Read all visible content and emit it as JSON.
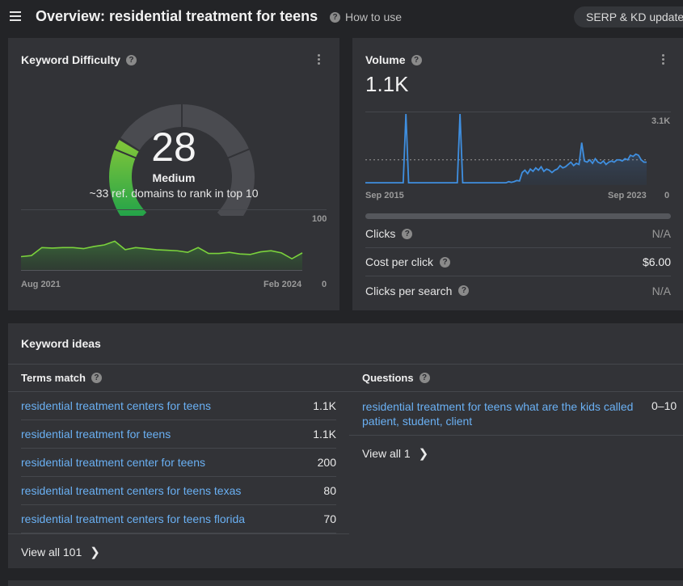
{
  "header": {
    "title": "Overview: residential treatment for teens",
    "how_to": "How to use",
    "serp_button": "SERP & KD updates"
  },
  "kd": {
    "title": "Keyword Difficulty",
    "value": "28",
    "level": "Medium",
    "description": "~33 ref. domains to rank in top 10",
    "gauge_fraction": 0.28,
    "colors": {
      "track": "#4a4b50",
      "fill_light": "#7cc43a",
      "fill_dark": "#1ea14a",
      "line": "#7bd23c"
    },
    "chart": {
      "x_start": "Aug 2021",
      "x_end": "Feb 2024",
      "y_max": "100",
      "y_min": "0"
    }
  },
  "volume": {
    "title": "Volume",
    "value": "1.1K",
    "colors": {
      "line": "#3f8fe0",
      "avg": "#9a9a9a"
    },
    "chart": {
      "x_start": "Sep 2015",
      "x_end": "Sep 2023",
      "y_max": "3.1K",
      "y_min": "0"
    },
    "metrics": [
      {
        "label": "Clicks",
        "value": "N/A"
      },
      {
        "label": "Cost per click",
        "value": "$6.00"
      },
      {
        "label": "Clicks per search",
        "value": "N/A"
      }
    ]
  },
  "chart_data": [
    {
      "type": "area",
      "title": "",
      "x_range": [
        "Aug 2021",
        "Feb 2024"
      ],
      "ylim": [
        0,
        100
      ],
      "values": [
        25,
        27,
        42,
        41,
        42,
        42,
        40,
        44,
        47,
        54,
        38,
        42,
        40,
        38,
        37,
        36,
        33,
        42,
        31,
        31,
        33,
        30,
        29,
        34,
        36,
        32,
        21,
        32
      ],
      "series": [
        {
          "name": "",
          "values": []
        }
      ]
    },
    {
      "type": "line",
      "title": "",
      "x_range": [
        "Sep 2015",
        "Sep 2023"
      ],
      "ylim": [
        0,
        3100
      ],
      "average": 1100,
      "values": [
        100,
        100,
        100,
        100,
        100,
        100,
        100,
        100,
        100,
        100,
        100,
        100,
        100,
        100,
        100,
        3100,
        100,
        100,
        100,
        100,
        100,
        100,
        100,
        100,
        100,
        100,
        100,
        100,
        100,
        100,
        100,
        100,
        100,
        100,
        100,
        3100,
        100,
        100,
        100,
        100,
        100,
        100,
        100,
        100,
        100,
        100,
        100,
        100,
        100,
        100,
        100,
        100,
        100,
        150,
        120,
        150,
        200,
        180,
        550,
        650,
        500,
        700,
        600,
        750,
        650,
        800,
        600,
        700,
        650,
        550,
        650,
        700,
        850,
        750,
        800,
        900,
        1000,
        850,
        950,
        900,
        1850,
        1050,
        1000,
        1100,
        950,
        1150,
        1000,
        950,
        1050,
        900,
        1000,
        1050,
        1000,
        1100,
        1100,
        1050,
        1150,
        1100,
        1300,
        1250,
        1350,
        1300,
        1100,
        1000,
        1000
      ]
    }
  ],
  "ideas": {
    "title": "Keyword ideas",
    "terms": {
      "title": "Terms match",
      "rows": [
        {
          "keyword": "residential treatment centers for teens",
          "volume": "1.1K"
        },
        {
          "keyword": "residential treatment for teens",
          "volume": "1.1K"
        },
        {
          "keyword": "residential treatment center for teens",
          "volume": "200"
        },
        {
          "keyword": "residential treatment centers for teens texas",
          "volume": "80"
        },
        {
          "keyword": "residential treatment centers for teens florida",
          "volume": "70"
        }
      ],
      "view_all": "View all 101"
    },
    "questions": {
      "title": "Questions",
      "rows": [
        {
          "keyword": "residential treatment for teens what are the kids called patient, student, client",
          "volume": "0–10"
        }
      ],
      "view_all": "View all 1"
    }
  }
}
